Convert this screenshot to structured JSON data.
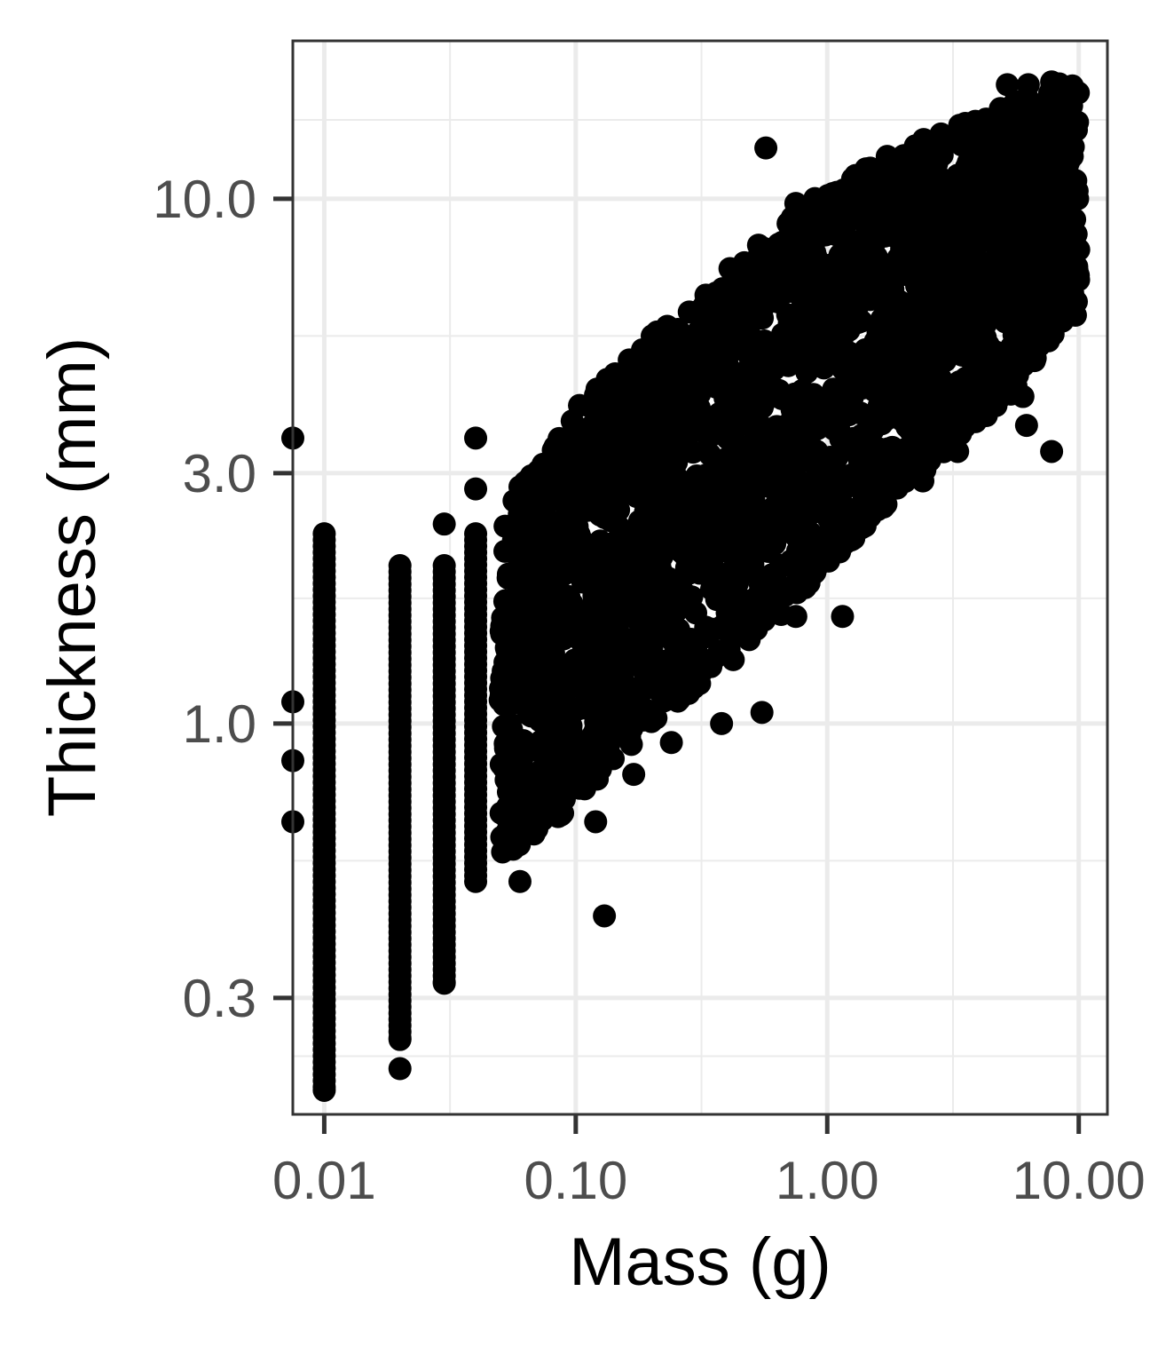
{
  "chart_data": {
    "type": "scatter",
    "title": "",
    "xlabel": "Mass (g)",
    "ylabel": "Thickness (mm)",
    "x_scale": "log10",
    "y_scale": "log10",
    "xlim": [
      0.0075,
      13
    ],
    "ylim": [
      0.18,
      20
    ],
    "x_ticks": [
      0.01,
      0.1,
      1,
      10
    ],
    "x_tick_labels": [
      "0.01",
      "0.10",
      "1.00",
      "10.00"
    ],
    "y_ticks": [
      0.3,
      1,
      3,
      10
    ],
    "y_tick_labels": [
      "0.3",
      "1.0",
      "3.0",
      "10.0"
    ],
    "grid": true,
    "legend": "none",
    "point_color": "#000000",
    "series": [
      {
        "clusters": [
          {
            "x": 0.01,
            "y_min": 0.2,
            "y_max": 2.3
          },
          {
            "x": 0.02,
            "y_min": 0.25,
            "y_max": 2.0
          },
          {
            "x": 0.03,
            "y_min": 0.32,
            "y_max": 2.0
          },
          {
            "x": 0.04,
            "y_min": 0.5,
            "y_max": 2.3
          }
        ],
        "band": {
          "x_range": [
            0.05,
            10
          ],
          "lower": [
            [
              0.05,
              0.55
            ],
            [
              0.1,
              0.7
            ],
            [
              0.2,
              1.0
            ],
            [
              0.5,
              1.4
            ],
            [
              1.0,
              2.0
            ],
            [
              2.0,
              2.8
            ],
            [
              5.0,
              4.0
            ],
            [
              9.0,
              6.0
            ]
          ],
          "upper": [
            [
              0.05,
              2.5
            ],
            [
              0.1,
              4.0
            ],
            [
              0.2,
              5.5
            ],
            [
              0.5,
              8.0
            ],
            [
              1.0,
              10.5
            ],
            [
              2.0,
              12.5
            ],
            [
              5.0,
              15.0
            ],
            [
              9.0,
              17.0
            ]
          ]
        },
        "points": [
          {
            "x": 0.0075,
            "y": 3.5
          },
          {
            "x": 0.0075,
            "y": 1.1
          },
          {
            "x": 0.0075,
            "y": 0.85
          },
          {
            "x": 0.0075,
            "y": 0.65
          },
          {
            "x": 0.02,
            "y": 0.22
          },
          {
            "x": 0.03,
            "y": 2.4
          },
          {
            "x": 0.04,
            "y": 3.5
          },
          {
            "x": 0.04,
            "y": 2.8
          },
          {
            "x": 0.06,
            "y": 0.5
          },
          {
            "x": 0.13,
            "y": 0.43
          },
          {
            "x": 0.12,
            "y": 0.65
          },
          {
            "x": 0.17,
            "y": 0.8
          },
          {
            "x": 0.24,
            "y": 0.92
          },
          {
            "x": 0.38,
            "y": 1.0
          },
          {
            "x": 0.55,
            "y": 1.05
          },
          {
            "x": 1.15,
            "y": 1.6
          },
          {
            "x": 0.75,
            "y": 1.6
          },
          {
            "x": 0.75,
            "y": 9.8
          },
          {
            "x": 0.57,
            "y": 12.5
          },
          {
            "x": 5.2,
            "y": 16.5
          },
          {
            "x": 6.3,
            "y": 16.5
          },
          {
            "x": 7.8,
            "y": 16.7
          },
          {
            "x": 9.0,
            "y": 15.5
          },
          {
            "x": 4.3,
            "y": 13.5
          },
          {
            "x": 9.7,
            "y": 6.0
          },
          {
            "x": 10.0,
            "y": 8.0
          },
          {
            "x": 7.8,
            "y": 3.3
          },
          {
            "x": 6.2,
            "y": 3.7
          },
          {
            "x": 6.0,
            "y": 4.2
          },
          {
            "x": 3.3,
            "y": 3.3
          },
          {
            "x": 3.8,
            "y": 4.2
          },
          {
            "x": 1.7,
            "y": 2.8
          },
          {
            "x": 2.4,
            "y": 2.9
          },
          {
            "x": 1.0,
            "y": 2.2
          }
        ]
      }
    ]
  }
}
